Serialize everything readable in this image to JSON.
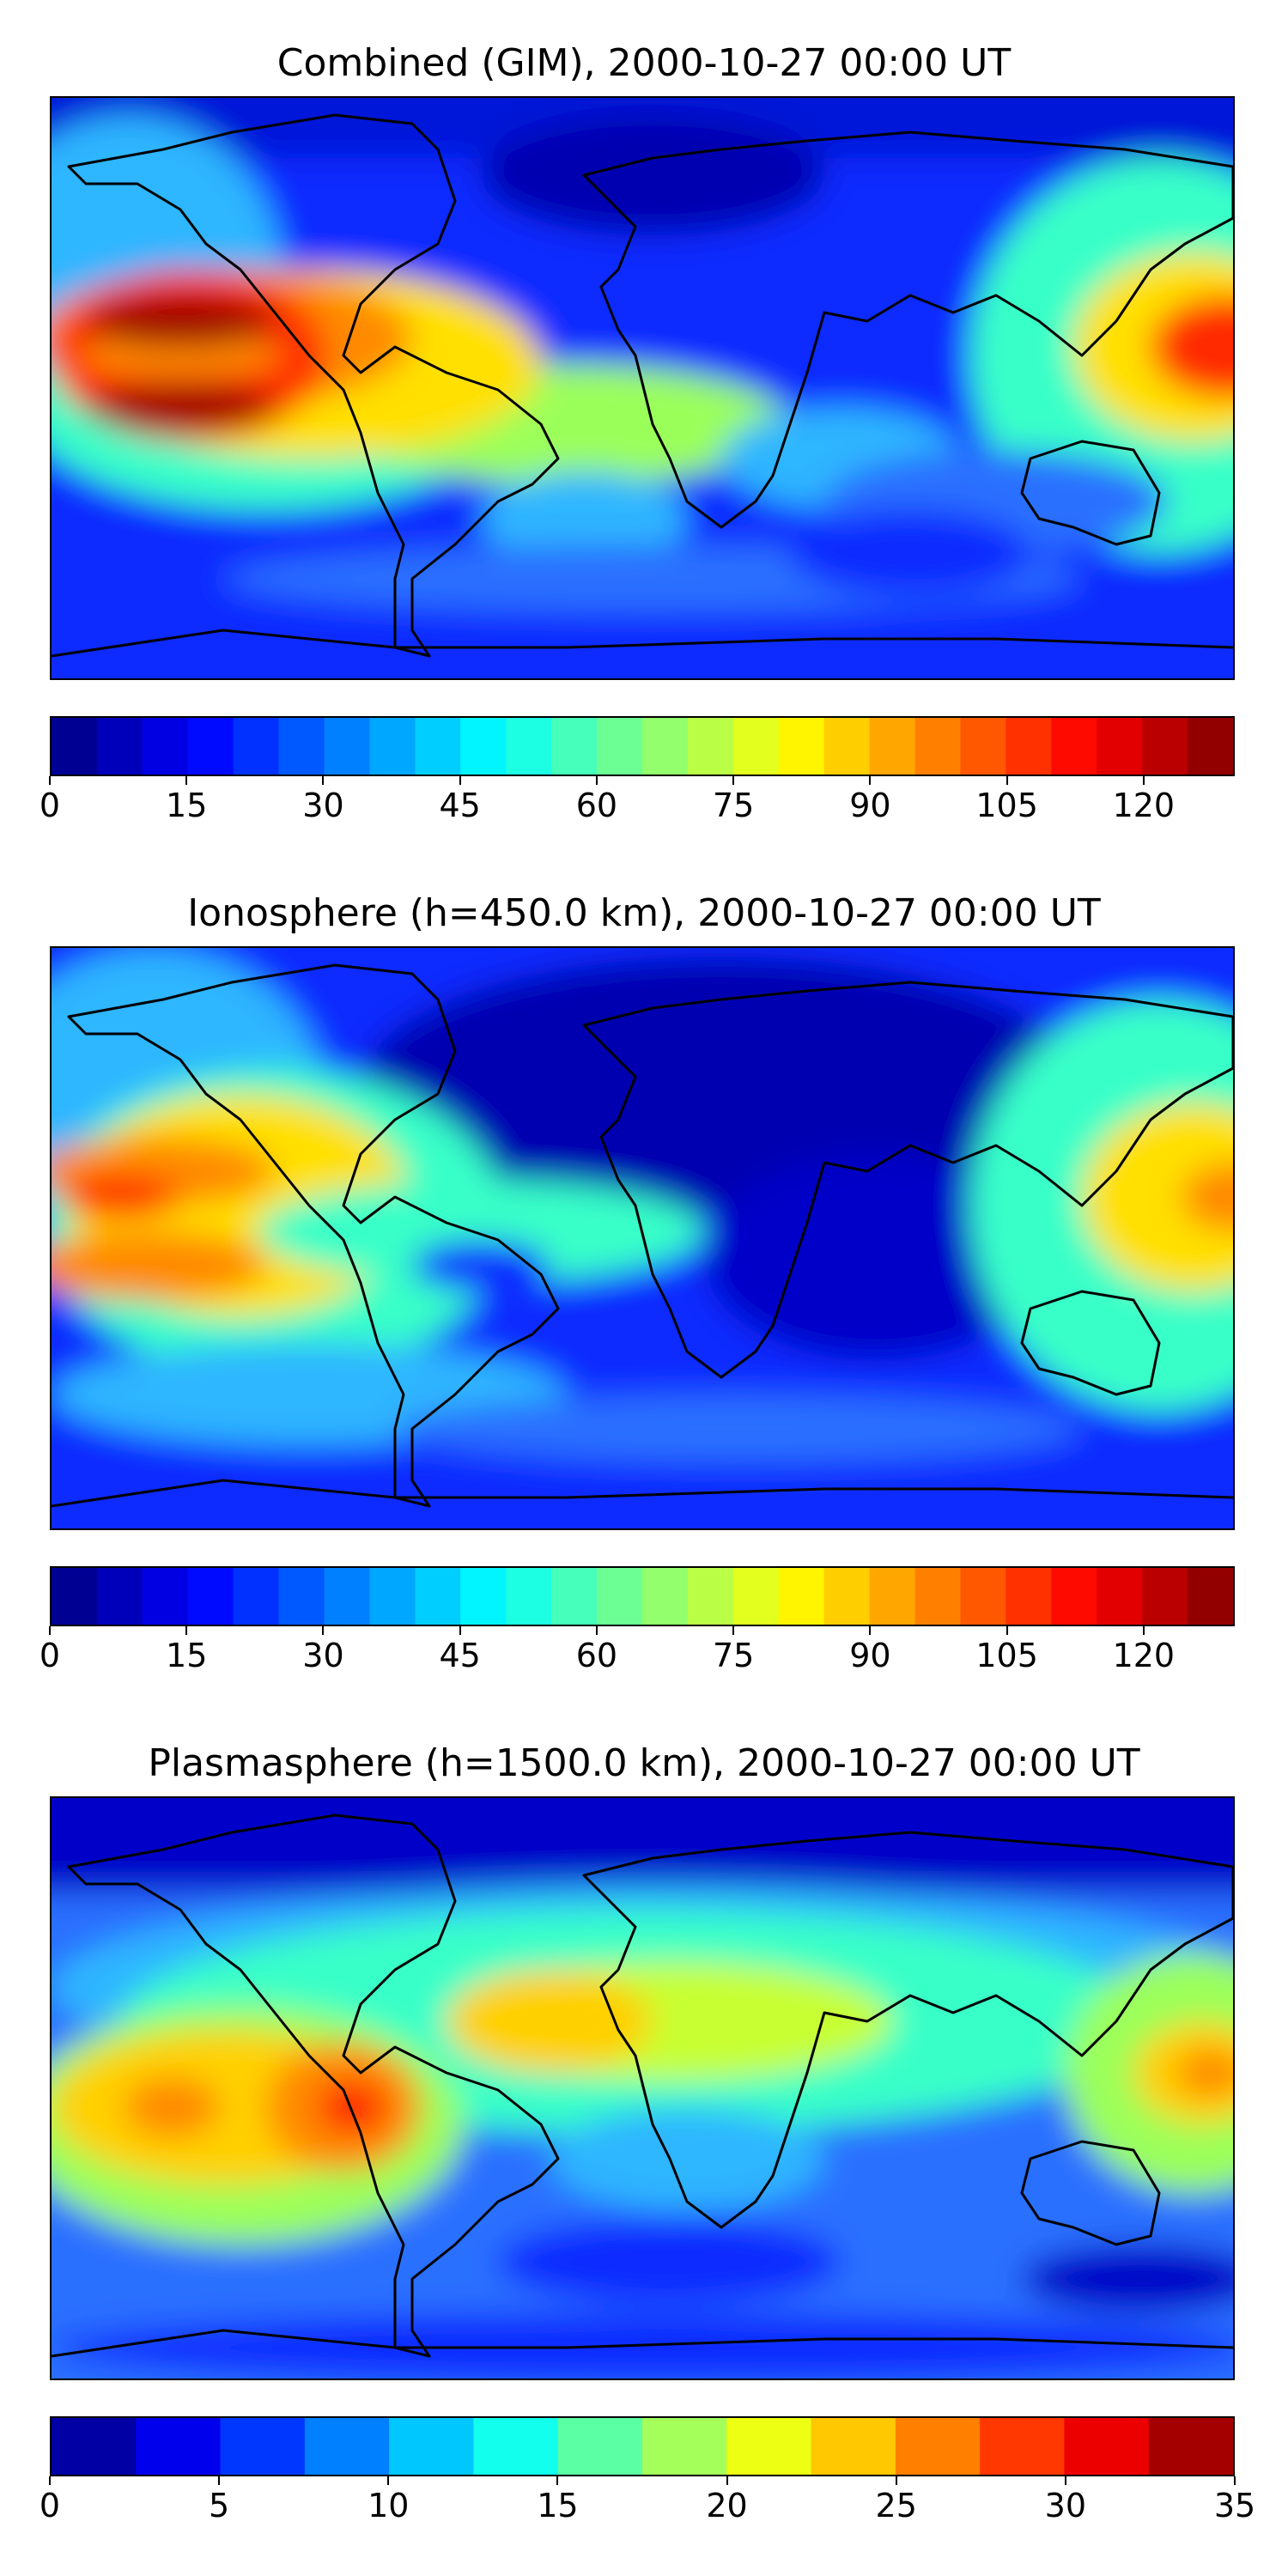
{
  "chart_data": [
    {
      "type": "heatmap",
      "title": "Combined (GIM), 2000-10-27 00:00 UT",
      "colormap": "jet",
      "colorbar": {
        "vmin": 0,
        "vmax": 130,
        "step": 5,
        "ticks": [
          0,
          15,
          30,
          45,
          60,
          75,
          90,
          105,
          120
        ],
        "tick_labels": [
          "0",
          "15",
          "30",
          "45",
          "60",
          "75",
          "90",
          "105",
          "120"
        ]
      },
      "features": [
        {
          "name": "peak-north-pacific",
          "lon": -150,
          "lat": 10,
          "value": 125
        },
        {
          "name": "peak-south-pacific",
          "lon": -145,
          "lat": -17,
          "value": 125
        },
        {
          "name": "peak-west-pacific",
          "lon": 175,
          "lat": 3,
          "value": 105
        },
        {
          "name": "low-atlantic-north",
          "lon": -10,
          "lat": 55,
          "value": 10
        },
        {
          "name": "low-africa-indian",
          "lon": 60,
          "lat": -10,
          "value": 12
        }
      ]
    },
    {
      "type": "heatmap",
      "title": "Ionosphere  (h=450.0 km), 2000-10-27 00:00 UT",
      "colormap": "jet",
      "colorbar": {
        "vmin": 0,
        "vmax": 130,
        "step": 5,
        "ticks": [
          0,
          15,
          30,
          45,
          60,
          75,
          90,
          105,
          120
        ],
        "tick_labels": [
          "0",
          "15",
          "30",
          "45",
          "60",
          "75",
          "90",
          "105",
          "120"
        ]
      },
      "features": [
        {
          "name": "peak-north-pacific",
          "lon": -155,
          "lat": 12,
          "value": 100
        },
        {
          "name": "peak-south-pacific",
          "lon": -150,
          "lat": -15,
          "value": 100
        },
        {
          "name": "peak-west-pacific",
          "lon": 178,
          "lat": 2,
          "value": 90
        },
        {
          "name": "low-eurasia",
          "lon": 40,
          "lat": 45,
          "value": 5
        },
        {
          "name": "low-indian",
          "lon": 55,
          "lat": -15,
          "value": 8
        }
      ]
    },
    {
      "type": "heatmap",
      "title": "Plasmasphere (h=1500.0 km), 2000-10-27 00:00 UT",
      "colormap": "jet",
      "colorbar": {
        "vmin": 0,
        "vmax": 35,
        "step": 2.5,
        "ticks": [
          0,
          5,
          10,
          15,
          20,
          25,
          30,
          35
        ],
        "tick_labels": [
          "0",
          "5",
          "10",
          "15",
          "20",
          "25",
          "30",
          "35"
        ]
      },
      "features": [
        {
          "name": "peak-east-pacific",
          "lon": -90,
          "lat": -5,
          "value": 32
        },
        {
          "name": "peak-central-pacific",
          "lon": -145,
          "lat": -2,
          "value": 27
        },
        {
          "name": "peak-west-pacific",
          "lon": 175,
          "lat": 5,
          "value": 26
        },
        {
          "name": "low-arctic",
          "lon": 0,
          "lat": 80,
          "value": 2
        },
        {
          "name": "low-south-indian",
          "lon": 40,
          "lat": -35,
          "value": 3
        },
        {
          "name": "low-australia-south",
          "lon": 140,
          "lat": -35,
          "value": 3
        }
      ]
    }
  ]
}
